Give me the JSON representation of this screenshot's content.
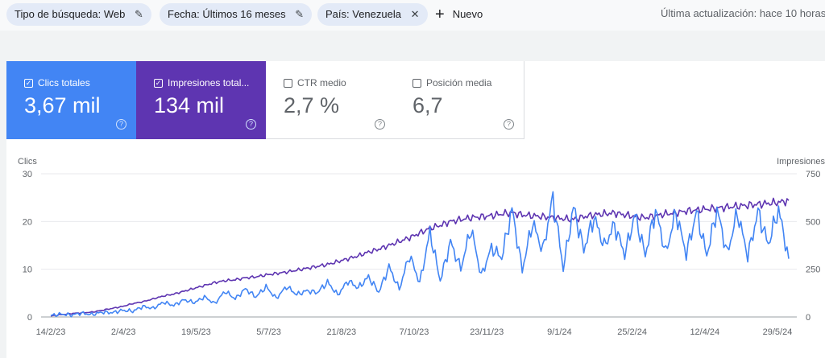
{
  "filters": {
    "search_type": "Tipo de búsqueda: Web",
    "date": "Fecha: Últimos 16 meses",
    "country": "País: Venezuela",
    "new_label": "Nuevo",
    "icons": {
      "edit": "pencil-icon",
      "remove": "close-icon",
      "add": "plus-icon"
    }
  },
  "last_update": "Última actualización: hace 10 horas",
  "metrics": {
    "clicks": {
      "label": "Clics totales",
      "value": "3,67 mil",
      "checked": true,
      "color": "#4285f4"
    },
    "impressions": {
      "label": "Impresiones total...",
      "value": "134 mil",
      "checked": true,
      "color": "#5e35b1"
    },
    "ctr": {
      "label": "CTR medio",
      "value": "2,7 %",
      "checked": false
    },
    "position": {
      "label": "Posición media",
      "value": "6,7",
      "checked": false
    }
  },
  "chart_data": {
    "type": "line",
    "ylabel_left": "Clics",
    "ylabel_right": "Impresiones",
    "yticks_left": [
      "0",
      "10",
      "20",
      "30"
    ],
    "yticks_right": [
      "0",
      "250",
      "500",
      "750"
    ],
    "ylim_left": [
      0,
      30
    ],
    "ylim_right": [
      0,
      750
    ],
    "x_tick_labels": [
      "14/2/23",
      "2/4/23",
      "19/5/23",
      "5/7/23",
      "21/8/23",
      "7/10/23",
      "23/11/23",
      "9/1/24",
      "25/2/24",
      "12/4/24",
      "29/5/24"
    ],
    "grid": true,
    "series": [
      {
        "name": "Clics",
        "axis": "left",
        "color": "#4285f4",
        "values": [
          0.3,
          0.6,
          0.4,
          0.8,
          0.5,
          1,
          0.9,
          1.4,
          1.2,
          2.2,
          1.8,
          3.1,
          2.4,
          3.6,
          3,
          4.2,
          2.8,
          5.4,
          3.8,
          5.9,
          4.2,
          6.3,
          3.9,
          6.4,
          4.7,
          5.5,
          5.1,
          7.3,
          4.6,
          7.6,
          6.1,
          8.4,
          5.2,
          10.5,
          5.8,
          13,
          7.1,
          17.8,
          7.6,
          15.7,
          10.1,
          18.6,
          8.6,
          14.5,
          12.4,
          22.6,
          9.8,
          19.8,
          13.9,
          25,
          10.1,
          23,
          14.1,
          20.9,
          14.8,
          19.3,
          13.1,
          21.4,
          13,
          22.4,
          13.4,
          21.9,
          13.1,
          22,
          12.9,
          22.5,
          13.3,
          21.9,
          12.7,
          22,
          15.2,
          22.6,
          12.2
        ]
      },
      {
        "name": "Impresiones",
        "axis": "right",
        "color": "#5e35b1",
        "values": [
          5,
          12,
          18,
          22,
          25,
          35,
          45,
          55,
          70,
          80,
          95,
          110,
          120,
          135,
          150,
          165,
          180,
          190,
          195,
          205,
          210,
          220,
          228,
          235,
          245,
          255,
          265,
          275,
          290,
          305,
          320,
          340,
          355,
          375,
          395,
          415,
          440,
          465,
          480,
          500,
          510,
          520,
          525,
          530,
          540,
          545,
          535,
          530,
          525,
          520,
          515,
          510,
          525,
          535,
          540,
          545,
          535,
          525,
          520,
          530,
          540,
          545,
          555,
          560,
          565,
          570,
          575,
          580,
          585,
          590,
          595,
          600,
          610
        ]
      }
    ]
  }
}
